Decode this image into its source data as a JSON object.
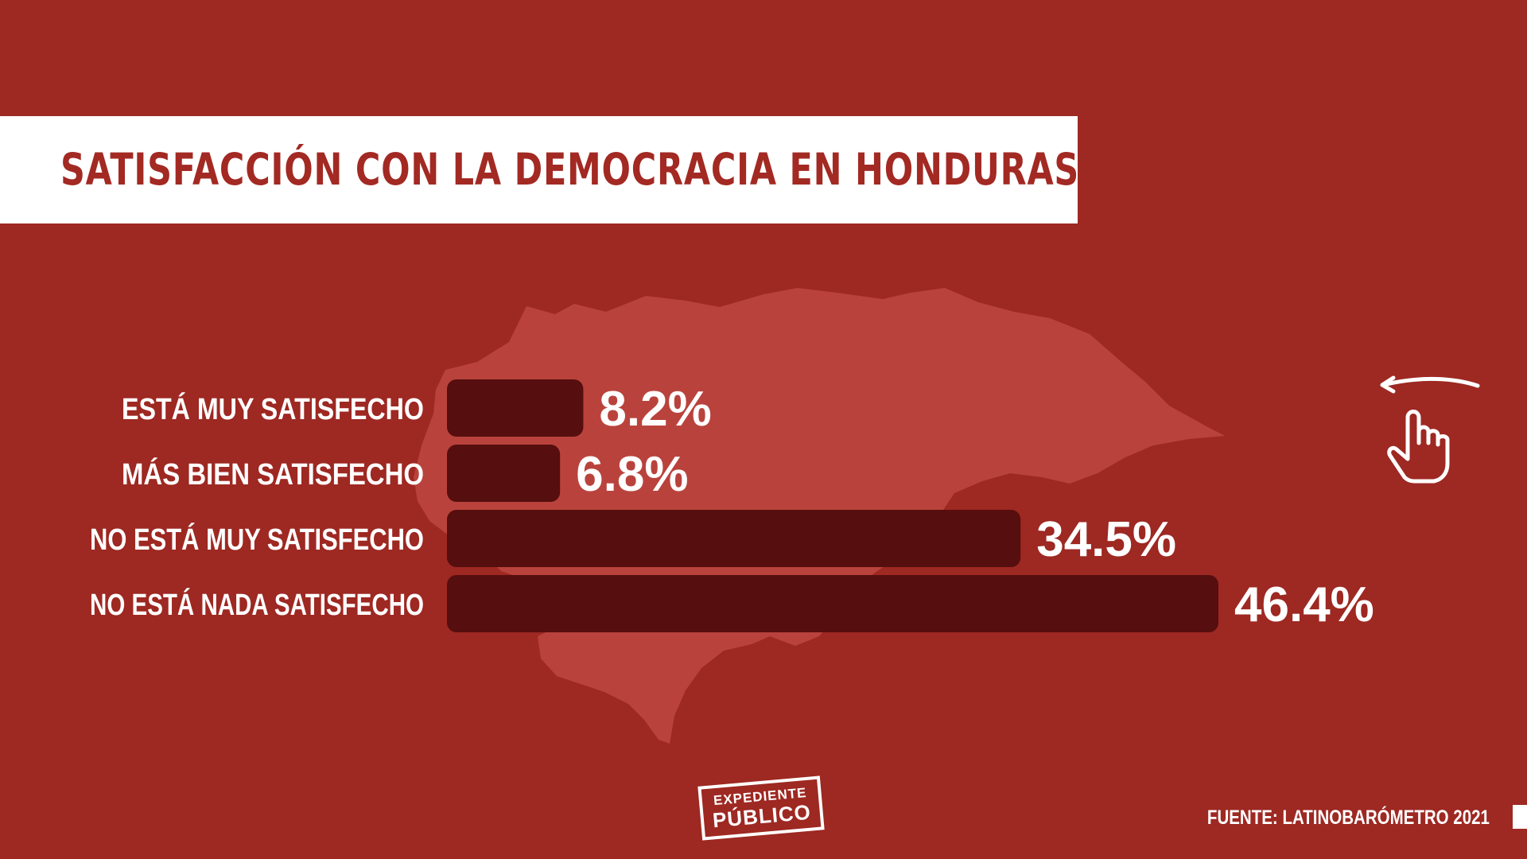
{
  "title": "SATISFACCIÓN CON LA DEMOCRACIA EN HONDURAS",
  "source": "FUENTE: LATINOBARÓMETRO 2021",
  "logo": {
    "line1": "EXPEDIENTE",
    "line2": "PÚBLICO"
  },
  "icons": {
    "swipe": "swipe-hand-icon",
    "background_map": "honduras-map-icon"
  },
  "colors": {
    "background": "#9e2822",
    "map": "#b9433c",
    "bar": "#560e0e",
    "title_band": "#ffffff",
    "title_text": "#a32923",
    "text": "#ffffff"
  },
  "chart_data": {
    "type": "bar",
    "orientation": "horizontal",
    "title": "SATISFACCIÓN CON LA DEMOCRACIA EN HONDURAS",
    "categories": [
      "ESTÁ MUY SATISFECHO",
      "MÁS BIEN SATISFECHO",
      "NO ESTÁ MUY SATISFECHO",
      "NO ESTÁ NADA SATISFECHO"
    ],
    "values": [
      8.2,
      6.8,
      34.5,
      46.4
    ],
    "value_labels": [
      "8.2%",
      "6.8%",
      "34.5%",
      "46.4%"
    ],
    "xlim": [
      0,
      46.4
    ],
    "grid": false,
    "legend": "none"
  }
}
